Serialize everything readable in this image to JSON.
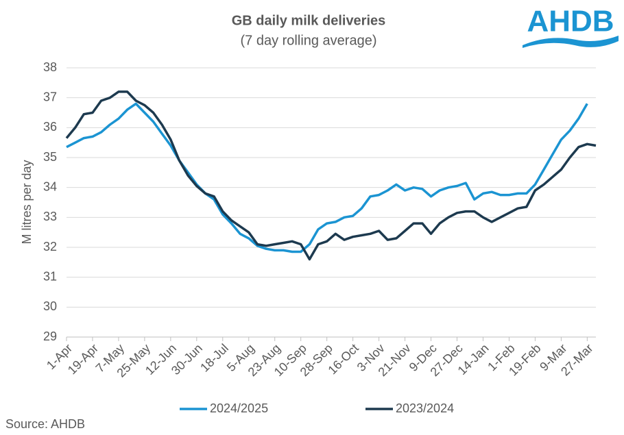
{
  "chart_data": {
    "type": "line",
    "title": "GB daily milk deliveries",
    "subtitle": "(7 day rolling average)",
    "y_label": "M litres per day",
    "logo": "AHDB",
    "source": "Source: AHDB",
    "grid": true,
    "legend": "bottom",
    "ylim": [
      29,
      38
    ],
    "yticks": [
      29,
      30,
      31,
      32,
      33,
      34,
      35,
      36,
      37,
      38
    ],
    "categories": [
      "1-Apr",
      null,
      null,
      "19-Apr",
      null,
      null,
      "7-May",
      null,
      null,
      "25-May",
      null,
      null,
      "12-Jun",
      null,
      null,
      "30-Jun",
      null,
      null,
      "18-Jul",
      null,
      null,
      "5-Aug",
      null,
      null,
      "23-Aug",
      null,
      null,
      "10-Sep",
      null,
      null,
      "28-Sep",
      null,
      null,
      "16-Oct",
      null,
      null,
      "3-Nov",
      null,
      null,
      "21-Nov",
      null,
      null,
      "9-Dec",
      null,
      null,
      "27-Dec",
      null,
      null,
      "14-Jan",
      null,
      null,
      "1-Feb",
      null,
      null,
      "19-Feb",
      null,
      null,
      "9-Mar",
      null,
      null,
      "27-Mar",
      null
    ],
    "series": [
      {
        "name": "2024/2025",
        "color": "#1b94d2",
        "values": [
          35.35,
          35.5,
          35.65,
          35.7,
          35.85,
          36.1,
          36.3,
          36.6,
          36.8,
          36.5,
          36.2,
          35.8,
          35.4,
          34.9,
          34.5,
          34.1,
          33.8,
          33.6,
          33.1,
          32.8,
          32.45,
          32.3,
          32.05,
          31.95,
          31.9,
          31.9,
          31.85,
          31.85,
          32.1,
          32.6,
          32.8,
          32.85,
          33.0,
          33.05,
          33.3,
          33.7,
          33.75,
          33.9,
          34.1,
          33.9,
          34.0,
          33.95,
          33.7,
          33.9,
          34.0,
          34.05,
          34.15,
          33.6,
          33.8,
          33.85,
          33.75,
          33.75,
          33.8,
          33.8,
          34.1,
          34.6,
          35.1,
          35.6,
          35.9,
          36.3,
          36.8,
          null
        ]
      },
      {
        "name": "2023/2024",
        "color": "#1d3a4f",
        "values": [
          35.65,
          36.0,
          36.45,
          36.5,
          36.9,
          37.0,
          37.2,
          37.2,
          36.9,
          36.75,
          36.5,
          36.1,
          35.6,
          34.9,
          34.4,
          34.05,
          33.8,
          33.7,
          33.2,
          32.9,
          32.7,
          32.5,
          32.1,
          32.05,
          32.1,
          32.15,
          32.2,
          32.1,
          31.6,
          32.1,
          32.2,
          32.45,
          32.25,
          32.35,
          32.4,
          32.45,
          32.55,
          32.25,
          32.3,
          32.55,
          32.8,
          32.8,
          32.45,
          32.8,
          33.0,
          33.15,
          33.2,
          33.2,
          33.0,
          32.85,
          33.0,
          33.15,
          33.3,
          33.35,
          33.9,
          34.1,
          34.35,
          34.6,
          35.0,
          35.35,
          35.45,
          35.4
        ]
      }
    ]
  }
}
